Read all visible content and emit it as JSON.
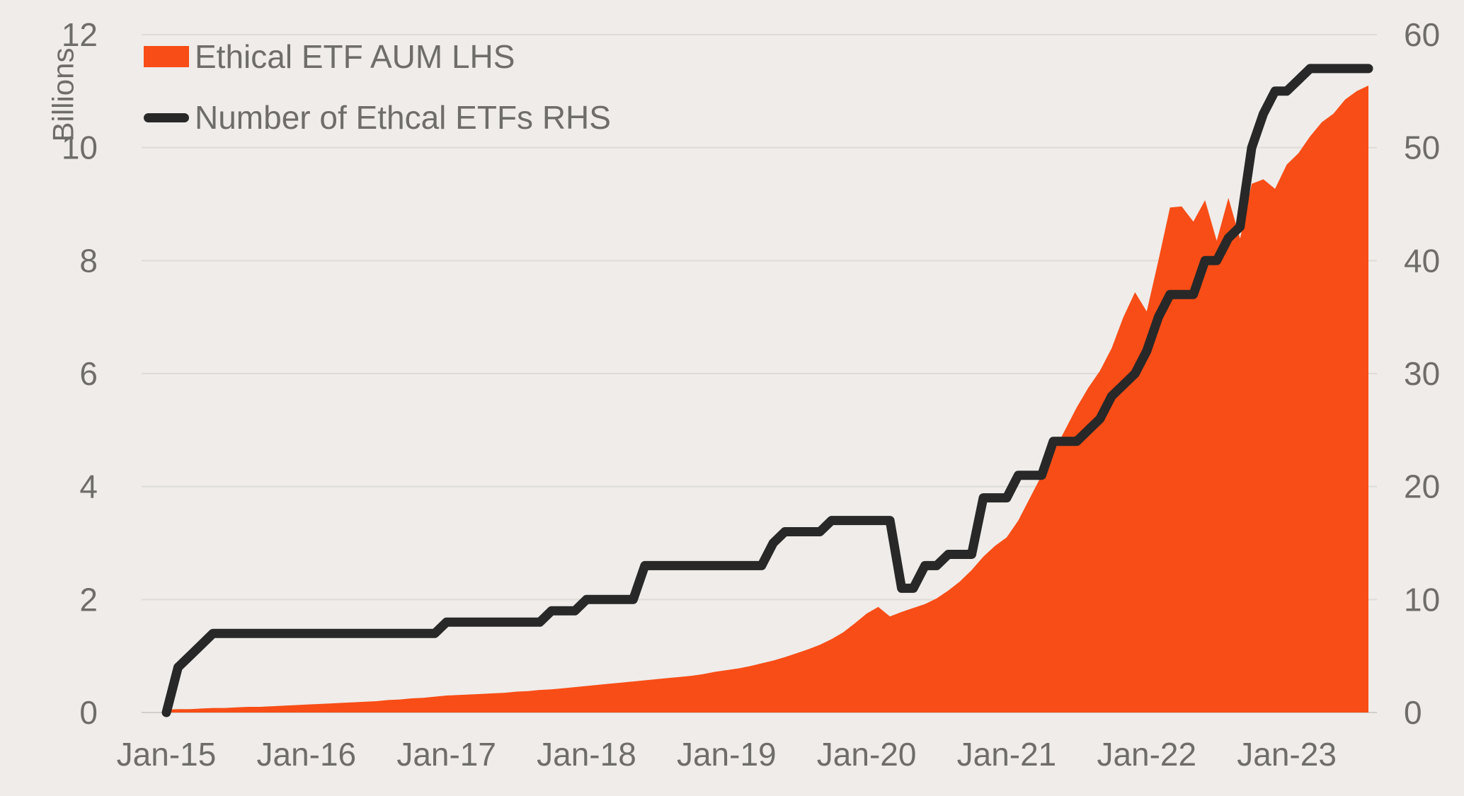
{
  "chart": {
    "y_left_axis_title": "Billions",
    "legend": [
      {
        "label": "Ethical ETF AUM LHS",
        "swatch": "area",
        "color": "#f84d16"
      },
      {
        "label": "Number of Ethcal ETFs RHS",
        "swatch": "line",
        "color": "#282828"
      }
    ],
    "colors": {
      "background": "#efece9",
      "gridline": "#dedbd7",
      "baseline": "#d2cfcb",
      "text": "#6f6d6a",
      "area": "#f84d16",
      "line": "#282828"
    }
  },
  "chart_data": {
    "type": "area+line",
    "title": "",
    "x": [
      "Jan-15",
      "Feb-15",
      "Mar-15",
      "Apr-15",
      "May-15",
      "Jun-15",
      "Jul-15",
      "Aug-15",
      "Sep-15",
      "Oct-15",
      "Nov-15",
      "Dec-15",
      "Jan-16",
      "Feb-16",
      "Mar-16",
      "Apr-16",
      "May-16",
      "Jun-16",
      "Jul-16",
      "Aug-16",
      "Sep-16",
      "Oct-16",
      "Nov-16",
      "Dec-16",
      "Jan-17",
      "Feb-17",
      "Mar-17",
      "Apr-17",
      "May-17",
      "Jun-17",
      "Jul-17",
      "Aug-17",
      "Sep-17",
      "Oct-17",
      "Nov-17",
      "Dec-17",
      "Jan-18",
      "Feb-18",
      "Mar-18",
      "Apr-18",
      "May-18",
      "Jun-18",
      "Jul-18",
      "Aug-18",
      "Sep-18",
      "Oct-18",
      "Nov-18",
      "Dec-18",
      "Jan-19",
      "Feb-19",
      "Mar-19",
      "Apr-19",
      "May-19",
      "Jun-19",
      "Jul-19",
      "Aug-19",
      "Sep-19",
      "Oct-19",
      "Nov-19",
      "Dec-19",
      "Jan-20",
      "Feb-20",
      "Mar-20",
      "Apr-20",
      "May-20",
      "Jun-20",
      "Jul-20",
      "Aug-20",
      "Sep-20",
      "Oct-20",
      "Nov-20",
      "Dec-20",
      "Jan-21",
      "Feb-21",
      "Mar-21",
      "Apr-21",
      "May-21",
      "Jun-21",
      "Jul-21",
      "Aug-21",
      "Sep-21",
      "Oct-21",
      "Nov-21",
      "Dec-21",
      "Jan-22",
      "Feb-22",
      "Mar-22",
      "Apr-22",
      "May-22",
      "Jun-22",
      "Jul-22",
      "Aug-22",
      "Sep-22",
      "Oct-22",
      "Nov-22",
      "Dec-22",
      "Jan-23",
      "Feb-23",
      "Mar-23",
      "Apr-23",
      "May-23",
      "Jun-23",
      "Jul-23",
      "Aug-23"
    ],
    "x_tick_indices": [
      0,
      12,
      24,
      36,
      48,
      60,
      72,
      84,
      96
    ],
    "x_tick_labels": [
      "Jan-15",
      "Jan-16",
      "Jan-17",
      "Jan-18",
      "Jan-19",
      "Jan-20",
      "Jan-21",
      "Jan-22",
      "Jan-23"
    ],
    "series": [
      {
        "name": "Ethical ETF AUM LHS",
        "type": "area",
        "axis": "left",
        "color": "#f84d16",
        "values": [
          0.05,
          0.06,
          0.06,
          0.07,
          0.08,
          0.08,
          0.09,
          0.1,
          0.1,
          0.11,
          0.12,
          0.13,
          0.14,
          0.15,
          0.16,
          0.17,
          0.18,
          0.19,
          0.2,
          0.22,
          0.23,
          0.25,
          0.26,
          0.28,
          0.3,
          0.31,
          0.32,
          0.33,
          0.34,
          0.35,
          0.37,
          0.38,
          0.4,
          0.41,
          0.43,
          0.45,
          0.47,
          0.49,
          0.51,
          0.53,
          0.55,
          0.57,
          0.59,
          0.61,
          0.63,
          0.65,
          0.68,
          0.72,
          0.75,
          0.78,
          0.82,
          0.87,
          0.92,
          0.98,
          1.05,
          1.12,
          1.2,
          1.3,
          1.42,
          1.58,
          1.75,
          1.87,
          1.7,
          1.78,
          1.85,
          1.92,
          2.02,
          2.16,
          2.32,
          2.52,
          2.76,
          2.95,
          3.1,
          3.4,
          3.8,
          4.2,
          4.6,
          5.0,
          5.4,
          5.75,
          6.05,
          6.45,
          7.0,
          7.44,
          7.1,
          8.0,
          8.94,
          8.96,
          8.69,
          9.07,
          8.35,
          9.11,
          8.39,
          9.36,
          9.44,
          9.27,
          9.7,
          9.9,
          10.2,
          10.45,
          10.6,
          10.85,
          11.0,
          11.1
        ]
      },
      {
        "name": "Number of Ethcal ETFs RHS",
        "type": "line",
        "axis": "right",
        "color": "#282828",
        "values": [
          0,
          4,
          5,
          6,
          7,
          7,
          7,
          7,
          7,
          7,
          7,
          7,
          7,
          7,
          7,
          7,
          7,
          7,
          7,
          7,
          7,
          7,
          7,
          7,
          8,
          8,
          8,
          8,
          8,
          8,
          8,
          8,
          8,
          9,
          9,
          9,
          10,
          10,
          10,
          10,
          10,
          13,
          13,
          13,
          13,
          13,
          13,
          13,
          13,
          13,
          13,
          13,
          15,
          16,
          16,
          16,
          16,
          17,
          17,
          17,
          17,
          17,
          17,
          11,
          11,
          13,
          13,
          14,
          14,
          14,
          19,
          19,
          19,
          21,
          21,
          21,
          24,
          24,
          24,
          25,
          26,
          28,
          29,
          30,
          32,
          35,
          37,
          37,
          37,
          40,
          40,
          42,
          43,
          50,
          53,
          55,
          55,
          56,
          57,
          57,
          57,
          57,
          57,
          57
        ]
      }
    ],
    "left_axis": {
      "label": "Billions",
      "min": 0,
      "max": 12,
      "ticks": [
        0,
        2,
        4,
        6,
        8,
        10,
        12
      ]
    },
    "right_axis": {
      "min": 0,
      "max": 60,
      "ticks": [
        0,
        10,
        20,
        30,
        40,
        50,
        60
      ]
    },
    "grid": "horizontal-only",
    "legend_position": "top-left-inside"
  }
}
